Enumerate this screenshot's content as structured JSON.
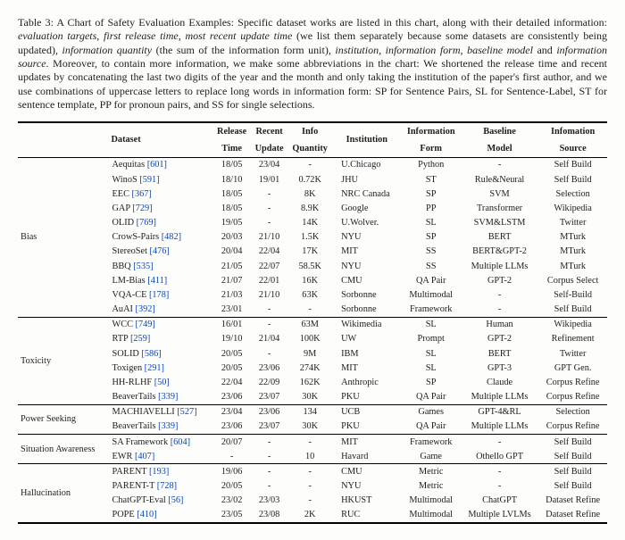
{
  "caption": {
    "lead": "Table 3: A Chart of Safety Evaluation Examples: Specific dataset works are listed in this chart, along with their detailed information: ",
    "italics1": "evaluation targets",
    "c1": ", ",
    "italics2": "first release time",
    "c2": ", ",
    "italics3": "most recent update time",
    "mid1": " (we list them separately because some datasets are consistently being updated), ",
    "italics4": "information quantity",
    "mid2": " (the sum of the information form unit), ",
    "italics5": "institution",
    "c3": ", ",
    "italics6": "information form",
    "c4": ", ",
    "italics7": "baseline model",
    "c5": " and ",
    "italics8": "information source",
    "tail": ". Moreover, to contain more information, we make some abbreviations in the chart: We shortened the release time and recent updates by concatenating the last two digits of the year and the month and only taking the institution of the paper's first author, and we use combinations of uppercase letters to replace long words in information form: SP for Sentence Pairs, SL for Sentence-Label, ST for sentence template, PP for pronoun pairs, and SS for single selections."
  },
  "headers": {
    "blank": "",
    "dataset": "Dataset",
    "rt1": "Release",
    "rt2": "Time",
    "ru1": "Recent",
    "ru2": "Update",
    "iq1": "Info",
    "iq2": "Quantity",
    "inst": "Institution",
    "form1": "Information",
    "form2": "Form",
    "bm1": "Baseline",
    "bm2": "Model",
    "src1": "Infomation",
    "src2": "Source"
  },
  "groups": [
    {
      "name": "Bias",
      "rows": [
        {
          "ds": "Aequitas",
          "cite": "[601]",
          "rt": "18/05",
          "ru": "23/04",
          "iq": "-",
          "inst": "U.Chicago",
          "form": "Python",
          "bm": "-",
          "src": "Self Build"
        },
        {
          "ds": "WinoS",
          "cite": "[591]",
          "rt": "18/10",
          "ru": "19/01",
          "iq": "0.72K",
          "inst": "JHU",
          "form": "ST",
          "bm": "Rule&Neural",
          "src": "Self Build"
        },
        {
          "ds": "EEC",
          "cite": "[367]",
          "rt": "18/05",
          "ru": "-",
          "iq": "8K",
          "inst": "NRC Canada",
          "form": "SP",
          "bm": "SVM",
          "src": "Selection"
        },
        {
          "ds": "GAP",
          "cite": "[729]",
          "rt": "18/05",
          "ru": "-",
          "iq": "8.9K",
          "inst": "Google",
          "form": "PP",
          "bm": "Transformer",
          "src": "Wikipedia"
        },
        {
          "ds": "OLID",
          "cite": "[769]",
          "rt": "19/05",
          "ru": "-",
          "iq": "14K",
          "inst": "U.Wolver.",
          "form": "SL",
          "bm": "SVM&LSTM",
          "src": "Twitter"
        },
        {
          "ds": "CrowS-Pairs",
          "cite": "[482]",
          "rt": "20/03",
          "ru": "21/10",
          "iq": "1.5K",
          "inst": "NYU",
          "form": "SP",
          "bm": "BERT",
          "src": "MTurk"
        },
        {
          "ds": "StereoSet",
          "cite": "[476]",
          "rt": "20/04",
          "ru": "22/04",
          "iq": "17K",
          "inst": "MIT",
          "form": "SS",
          "bm": "BERT&GPT-2",
          "src": "MTurk"
        },
        {
          "ds": "BBQ",
          "cite": "[535]",
          "rt": "21/05",
          "ru": "22/07",
          "iq": "58.5K",
          "inst": "NYU",
          "form": "SS",
          "bm": "Multiple LLMs",
          "src": "MTurk"
        },
        {
          "ds": "LM-Bias",
          "cite": "[411]",
          "rt": "21/07",
          "ru": "22/01",
          "iq": "16K",
          "inst": "CMU",
          "form": "QA Pair",
          "bm": "GPT-2",
          "src": "Corpus Select"
        },
        {
          "ds": "VQA-CE",
          "cite": "[178]",
          "rt": "21/03",
          "ru": "21/10",
          "iq": "63K",
          "inst": "Sorbonne",
          "form": "Multimodal",
          "bm": "-",
          "src": "Self-Build"
        },
        {
          "ds": "AuAI",
          "cite": "[392]",
          "rt": "23/01",
          "ru": "-",
          "iq": "-",
          "inst": "Sorbonne",
          "form": "Framework",
          "bm": "-",
          "src": "Self Build"
        }
      ]
    },
    {
      "name": "Toxicity",
      "rows": [
        {
          "ds": "WCC",
          "cite": "[749]",
          "rt": "16/01",
          "ru": "-",
          "iq": "63M",
          "inst": "Wikimedia",
          "form": "SL",
          "bm": "Human",
          "src": "Wikipedia"
        },
        {
          "ds": "RTP",
          "cite": "[259]",
          "rt": "19/10",
          "ru": "21/04",
          "iq": "100K",
          "inst": "UW",
          "form": "Prompt",
          "bm": "GPT-2",
          "src": "Refinement"
        },
        {
          "ds": "SOLID",
          "cite": "[586]",
          "rt": "20/05",
          "ru": "-",
          "iq": "9M",
          "inst": "IBM",
          "form": "SL",
          "bm": "BERT",
          "src": "Twitter"
        },
        {
          "ds": "Toxigen",
          "cite": "[291]",
          "rt": "20/05",
          "ru": "23/06",
          "iq": "274K",
          "inst": "MIT",
          "form": "SL",
          "bm": "GPT-3",
          "src": "GPT Gen."
        },
        {
          "ds": "HH-RLHF",
          "cite": "[50]",
          "rt": "22/04",
          "ru": "22/09",
          "iq": "162K",
          "inst": "Anthropic",
          "form": "SP",
          "bm": "Claude",
          "src": "Corpus Refine"
        },
        {
          "ds": "BeaverTails",
          "cite": "[339]",
          "rt": "23/06",
          "ru": "23/07",
          "iq": "30K",
          "inst": "PKU",
          "form": "QA Pair",
          "bm": "Multiple LLMs",
          "src": "Corpus Refine"
        }
      ]
    },
    {
      "name": "Power Seeking",
      "rows": [
        {
          "ds": "MACHIAVELLI",
          "cite": "[527]",
          "rt": "23/04",
          "ru": "23/06",
          "iq": "134",
          "inst": "UCB",
          "form": "Games",
          "bm": "GPT-4&RL",
          "src": "Selection"
        },
        {
          "ds": "BeaverTails",
          "cite": "[339]",
          "rt": "23/06",
          "ru": "23/07",
          "iq": "30K",
          "inst": "PKU",
          "form": "QA Pair",
          "bm": "Multiple LLMs",
          "src": "Corpus Refine"
        }
      ]
    },
    {
      "name": "Situation Awareness",
      "rows": [
        {
          "ds": "SA Framework",
          "cite": "[604]",
          "rt": "20/07",
          "ru": "-",
          "iq": "-",
          "inst": "MIT",
          "form": "Framework",
          "bm": "-",
          "src": "Self Build"
        },
        {
          "ds": "EWR",
          "cite": "[407]",
          "rt": "-",
          "ru": "-",
          "iq": "10",
          "inst": "Havard",
          "form": "Game",
          "bm": "Othello GPT",
          "src": "Self Build"
        }
      ]
    },
    {
      "name": "Hallucination",
      "rows": [
        {
          "ds": "PARENT",
          "cite": "[193]",
          "rt": "19/06",
          "ru": "-",
          "iq": "-",
          "inst": "CMU",
          "form": "Metric",
          "bm": "-",
          "src": "Self Build"
        },
        {
          "ds": "PARENT-T",
          "cite": "[728]",
          "rt": "20/05",
          "ru": "-",
          "iq": "-",
          "inst": "NYU",
          "form": "Metric",
          "bm": "-",
          "src": "Self Build"
        },
        {
          "ds": "ChatGPT-Eval",
          "cite": "[56]",
          "rt": "23/02",
          "ru": "23/03",
          "iq": "-",
          "inst": "HKUST",
          "form": "Multimodal",
          "bm": "ChatGPT",
          "src": "Dataset Refine"
        },
        {
          "ds": "POPE",
          "cite": "[410]",
          "rt": "23/05",
          "ru": "23/08",
          "iq": "2K",
          "inst": "RUC",
          "form": "Multimodal",
          "bm": "Multiple LVLMs",
          "src": "Dataset Refine"
        }
      ]
    }
  ]
}
